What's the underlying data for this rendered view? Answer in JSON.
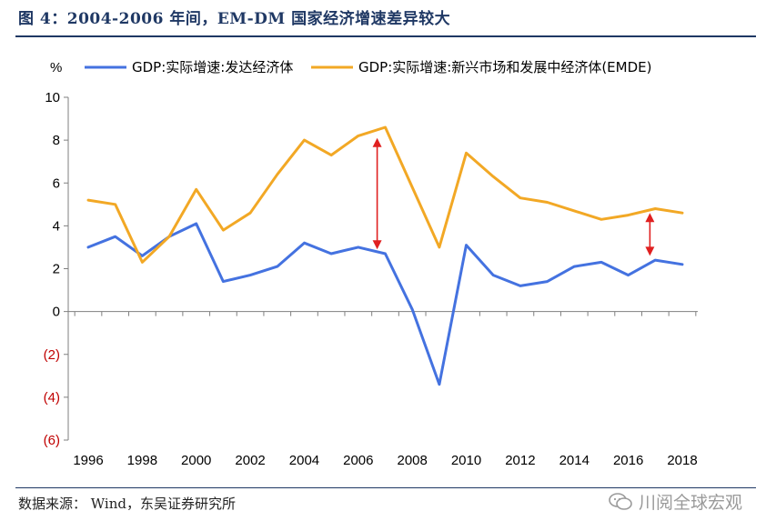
{
  "header": {
    "title": "图 4：2004-2006 年间，EM-DM 国家经济增速差异较大"
  },
  "footer": {
    "source": "数据来源： Wind，东吴证券研究所",
    "watermark": "川阅全球宏观"
  },
  "colors": {
    "advanced": "#4472e0",
    "emerging": "#f2a825",
    "arrow": "#e02020",
    "title": "#1f3864"
  },
  "chart_data": {
    "type": "line",
    "title": "",
    "y_unit": "%",
    "xlabel": "",
    "ylabel": "",
    "ylim": [
      -6,
      10
    ],
    "y_ticks": [
      10,
      8,
      6,
      4,
      2,
      0,
      -2,
      -4,
      -6
    ],
    "y_tick_labels": [
      "10",
      "8",
      "6",
      "4",
      "2",
      "0",
      "(2)",
      "(4)",
      "(6)"
    ],
    "x": [
      1996,
      1997,
      1998,
      1999,
      2000,
      2001,
      2002,
      2003,
      2004,
      2005,
      2006,
      2007,
      2008,
      2009,
      2010,
      2011,
      2012,
      2013,
      2014,
      2015,
      2016,
      2017,
      2018
    ],
    "x_tick_labels": [
      "1996",
      "1998",
      "2000",
      "2002",
      "2004",
      "2006",
      "2008",
      "2010",
      "2012",
      "2014",
      "2016",
      "2018"
    ],
    "legend_position": "top",
    "grid": false,
    "series": [
      {
        "name": "GDP:实际增速:发达经济体",
        "color": "#4472e0",
        "values": [
          3.0,
          3.5,
          2.6,
          3.5,
          4.1,
          1.4,
          1.7,
          2.1,
          3.2,
          2.7,
          3.0,
          2.7,
          0.1,
          -3.4,
          3.1,
          1.7,
          1.2,
          1.4,
          2.1,
          2.3,
          1.7,
          2.4,
          2.2
        ]
      },
      {
        "name": "GDP:实际增速:新兴市场和发展中经济体(EMDE)",
        "color": "#f2a825",
        "values": [
          5.2,
          5.0,
          2.3,
          3.5,
          5.7,
          3.8,
          4.6,
          6.4,
          8.0,
          7.3,
          8.2,
          8.6,
          5.8,
          3.0,
          7.4,
          6.3,
          5.3,
          5.1,
          4.7,
          4.3,
          4.5,
          4.8,
          4.6
        ]
      }
    ],
    "annotations": [
      {
        "type": "double-arrow",
        "x": 2006.7,
        "y_from": 2.9,
        "y_to": 8.1
      },
      {
        "type": "double-arrow",
        "x": 2016.8,
        "y_from": 2.6,
        "y_to": 4.6
      }
    ]
  }
}
